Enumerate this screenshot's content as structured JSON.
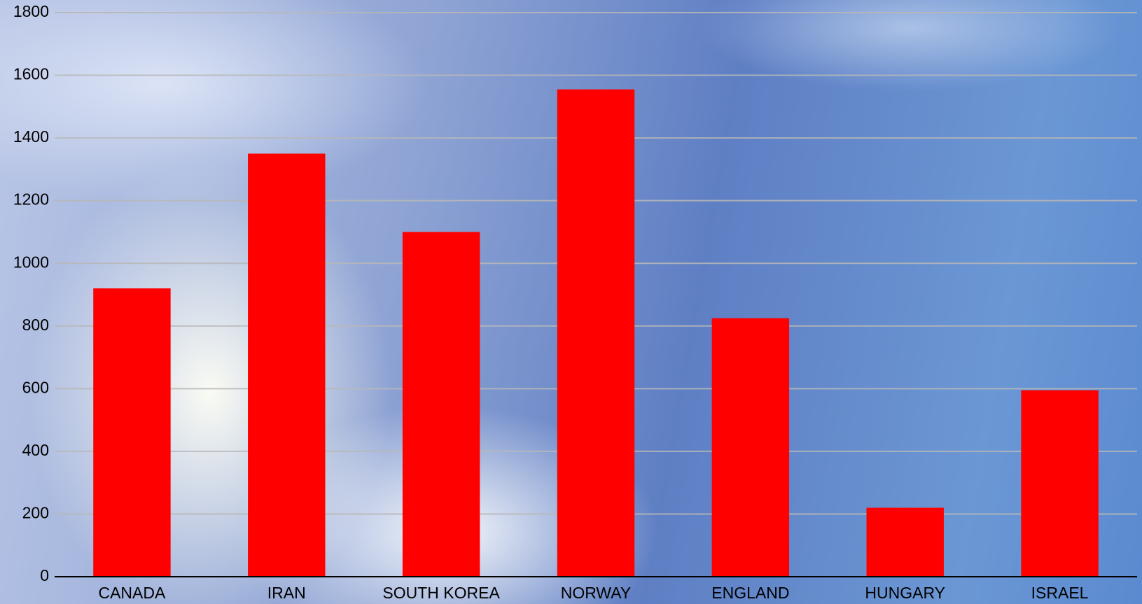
{
  "chart_data": {
    "type": "bar",
    "categories": [
      "CANADA",
      "IRAN",
      "SOUTH KOREA",
      "NORWAY",
      "ENGLAND",
      "HUNGARY",
      "ISRAEL"
    ],
    "values": [
      920,
      1350,
      1100,
      1555,
      825,
      220,
      595
    ],
    "color": "#ff0000",
    "ylim": [
      0,
      1800
    ],
    "yticks": [
      0,
      200,
      400,
      600,
      800,
      1000,
      1200,
      1400,
      1600,
      1800
    ],
    "grid": true
  }
}
